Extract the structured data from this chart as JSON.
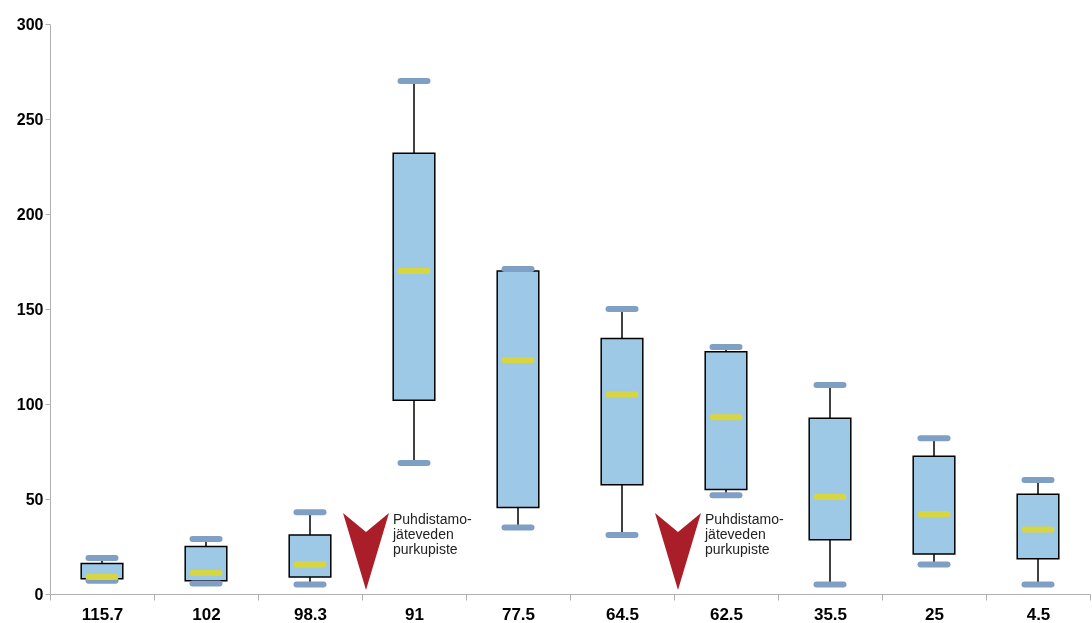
{
  "chart_data": {
    "type": "box",
    "categories": [
      "115.7",
      "102",
      "98.3",
      "91",
      "77.5",
      "64.5",
      "62.5",
      "35.5",
      "25",
      "4.5"
    ],
    "ylim": [
      0,
      300
    ],
    "yticks": [
      0,
      50,
      100,
      150,
      200,
      250,
      300
    ],
    "grid": false,
    "annotations": [
      "Puhdistamo-jäteveden purkupiste",
      "Puhdistamo-jäteveden purkupiste"
    ],
    "series": [
      {
        "color": "#9dc8e6",
        "boxes": [
          {
            "low": 7,
            "q1": 8,
            "median": 9,
            "q3": 16,
            "high": 19
          },
          {
            "low": 5.5,
            "q1": 7,
            "median": 11,
            "q3": 25,
            "high": 29
          },
          {
            "low": 5,
            "q1": 9,
            "median": 15.5,
            "q3": 31,
            "high": 43
          },
          {
            "low": 69,
            "q1": 102,
            "median": 170,
            "q3": 232,
            "high": 270
          },
          {
            "low": 35,
            "q1": 45.5,
            "median": 123,
            "q3": 170,
            "high": 171
          },
          {
            "low": 31,
            "q1": 57.5,
            "median": 105,
            "q3": 134.5,
            "high": 150
          },
          {
            "low": 52,
            "q1": 55,
            "median": 93,
            "q3": 127.5,
            "high": 130
          },
          {
            "low": 5,
            "q1": 28.5,
            "median": 51,
            "q3": 92.5,
            "high": 110
          },
          {
            "low": 15.5,
            "q1": 21,
            "median": 42,
            "q3": 72.5,
            "high": 82
          },
          {
            "low": 5,
            "q1": 18.5,
            "median": 34,
            "q3": 52.5,
            "high": 60
          }
        ]
      }
    ]
  }
}
